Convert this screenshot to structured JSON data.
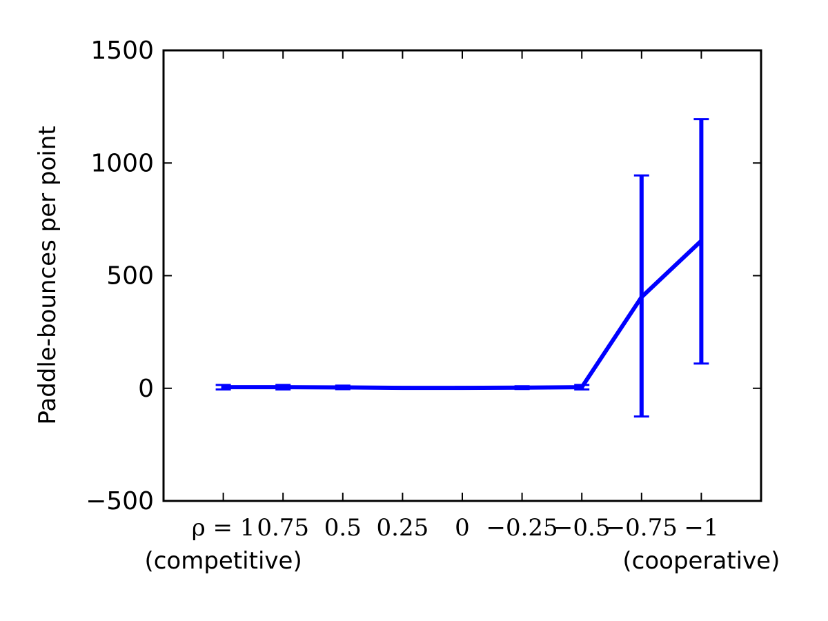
{
  "chart_data": {
    "type": "line",
    "categories": [
      "ρ = 1",
      "0.75",
      "0.5",
      "0.25",
      "0",
      "−0.25",
      "−0.5",
      "−0.75",
      "−1"
    ],
    "series": [
      {
        "values": [
          5,
          5,
          4,
          2,
          2,
          3,
          5,
          405,
          655
        ],
        "error_low": [
          -5,
          -5,
          -4,
          -2,
          -2,
          -3,
          -5,
          -125,
          110
        ],
        "error_high": [
          15,
          15,
          12,
          6,
          6,
          9,
          15,
          945,
          1195
        ],
        "color": "#0000ff"
      }
    ],
    "xlabel": "",
    "ylabel": "Paddle-bounces per point",
    "ylim": [
      -500,
      1500
    ],
    "yticks": [
      -500,
      0,
      500,
      1000,
      1500
    ],
    "ytick_labels": [
      "−500",
      "0",
      "500",
      "1000",
      "1500"
    ],
    "annotations": [
      {
        "text": "(competitive)",
        "anchor": "ρ = 1"
      },
      {
        "text": "(cooperative)",
        "anchor": "−1"
      }
    ],
    "grid": false,
    "legend": "none"
  }
}
